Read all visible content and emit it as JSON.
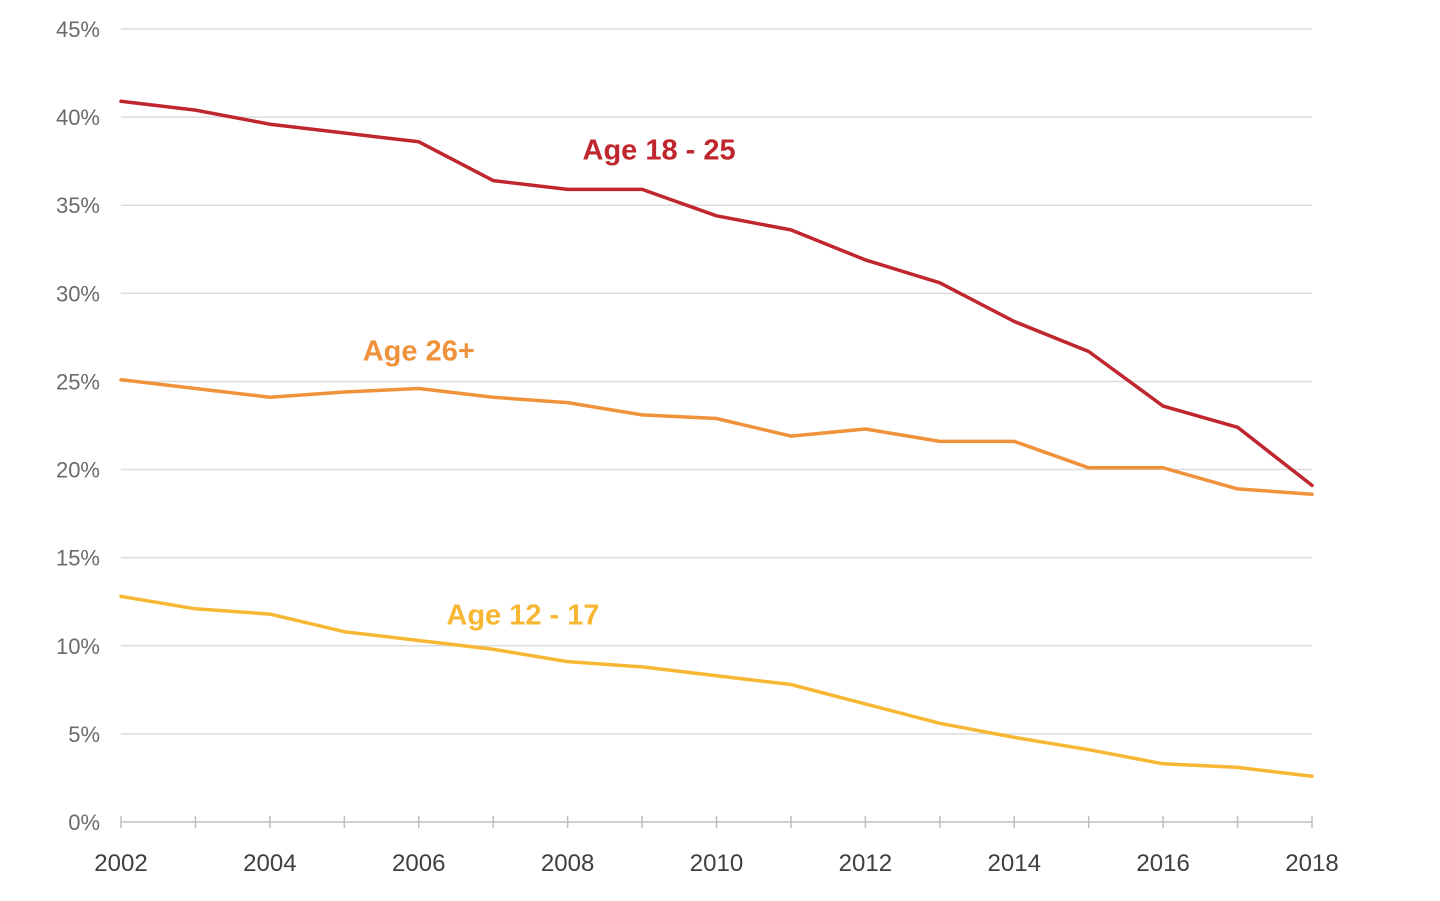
{
  "chart_data": {
    "type": "line",
    "title": "",
    "xlabel": "",
    "ylabel": "",
    "x": [
      2002,
      2003,
      2004,
      2005,
      2006,
      2007,
      2008,
      2009,
      2010,
      2011,
      2012,
      2013,
      2014,
      2015,
      2016,
      2017,
      2018
    ],
    "x_tick_labels": [
      "2002",
      "2004",
      "2006",
      "2008",
      "2010",
      "2012",
      "2014",
      "2016",
      "2018"
    ],
    "y_tick_labels": [
      "0%",
      "5%",
      "10%",
      "15%",
      "20%",
      "25%",
      "30%",
      "35%",
      "40%",
      "45%"
    ],
    "xlim": [
      2002,
      2018
    ],
    "ylim": [
      0,
      45
    ],
    "grid": true,
    "legend": "inline labels",
    "series": [
      {
        "name": "Age 18 - 25",
        "color": "#c0262d",
        "values": [
          40.9,
          40.4,
          39.6,
          39.1,
          38.6,
          36.4,
          35.9,
          35.9,
          34.4,
          33.6,
          31.9,
          30.6,
          28.4,
          26.7,
          23.6,
          22.4,
          19.1
        ]
      },
      {
        "name": "Age 26+",
        "color": "#f0923a",
        "values": [
          25.1,
          24.6,
          24.1,
          24.4,
          24.6,
          24.1,
          23.8,
          23.1,
          22.9,
          21.9,
          22.3,
          21.6,
          21.6,
          20.1,
          20.1,
          18.9,
          18.6
        ]
      },
      {
        "name": "Age 12 - 17",
        "color": "#f7b733",
        "values": [
          12.8,
          12.1,
          11.8,
          10.8,
          10.3,
          9.8,
          9.1,
          8.8,
          8.3,
          7.8,
          6.7,
          5.6,
          4.8,
          4.1,
          3.3,
          3.1,
          2.6
        ]
      }
    ]
  }
}
